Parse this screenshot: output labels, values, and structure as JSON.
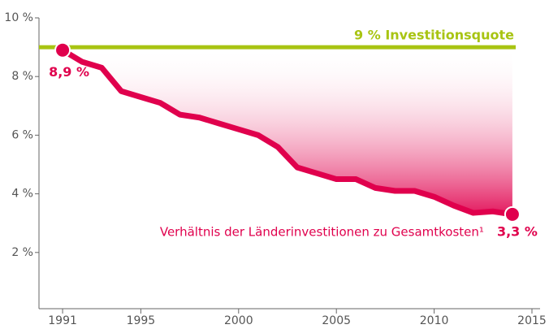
{
  "chart_data": {
    "type": "line",
    "x": [
      1991,
      1992,
      1993,
      1994,
      1995,
      1996,
      1997,
      1998,
      1999,
      2000,
      2001,
      2002,
      2003,
      2004,
      2005,
      2006,
      2007,
      2008,
      2009,
      2010,
      2011,
      2012,
      2013,
      2014
    ],
    "series": [
      {
        "name": "Verhältnis der Länderinvestitionen zu Gesamtkosten¹",
        "color": "#e0004d",
        "values": [
          8.9,
          8.5,
          8.3,
          7.5,
          7.3,
          7.1,
          6.7,
          6.6,
          6.4,
          6.2,
          6.0,
          5.6,
          4.9,
          4.7,
          4.5,
          4.5,
          4.2,
          4.1,
          4.1,
          3.9,
          3.6,
          3.35,
          3.4,
          3.3
        ],
        "value_labels": [
          "8,9 %",
          null,
          null,
          null,
          null,
          null,
          null,
          null,
          null,
          null,
          null,
          null,
          null,
          null,
          null,
          null,
          null,
          null,
          null,
          null,
          null,
          null,
          null,
          "3,3 %"
        ]
      }
    ],
    "reference": {
      "value": 9,
      "label": "9 % Investitionsquote",
      "color": "#a8c412"
    },
    "xlim": [
      1990,
      2015
    ],
    "xticks": [
      1991,
      1995,
      2000,
      2005,
      2010,
      2015
    ],
    "ylim": [
      0,
      10
    ],
    "yticks": [
      {
        "value": 2,
        "label": "2 %"
      },
      {
        "value": 4,
        "label": "4 %"
      },
      {
        "value": 6,
        "label": "6 %"
      },
      {
        "value": 8,
        "label": "8 %"
      },
      {
        "value": 10,
        "label": "10 %"
      }
    ]
  }
}
